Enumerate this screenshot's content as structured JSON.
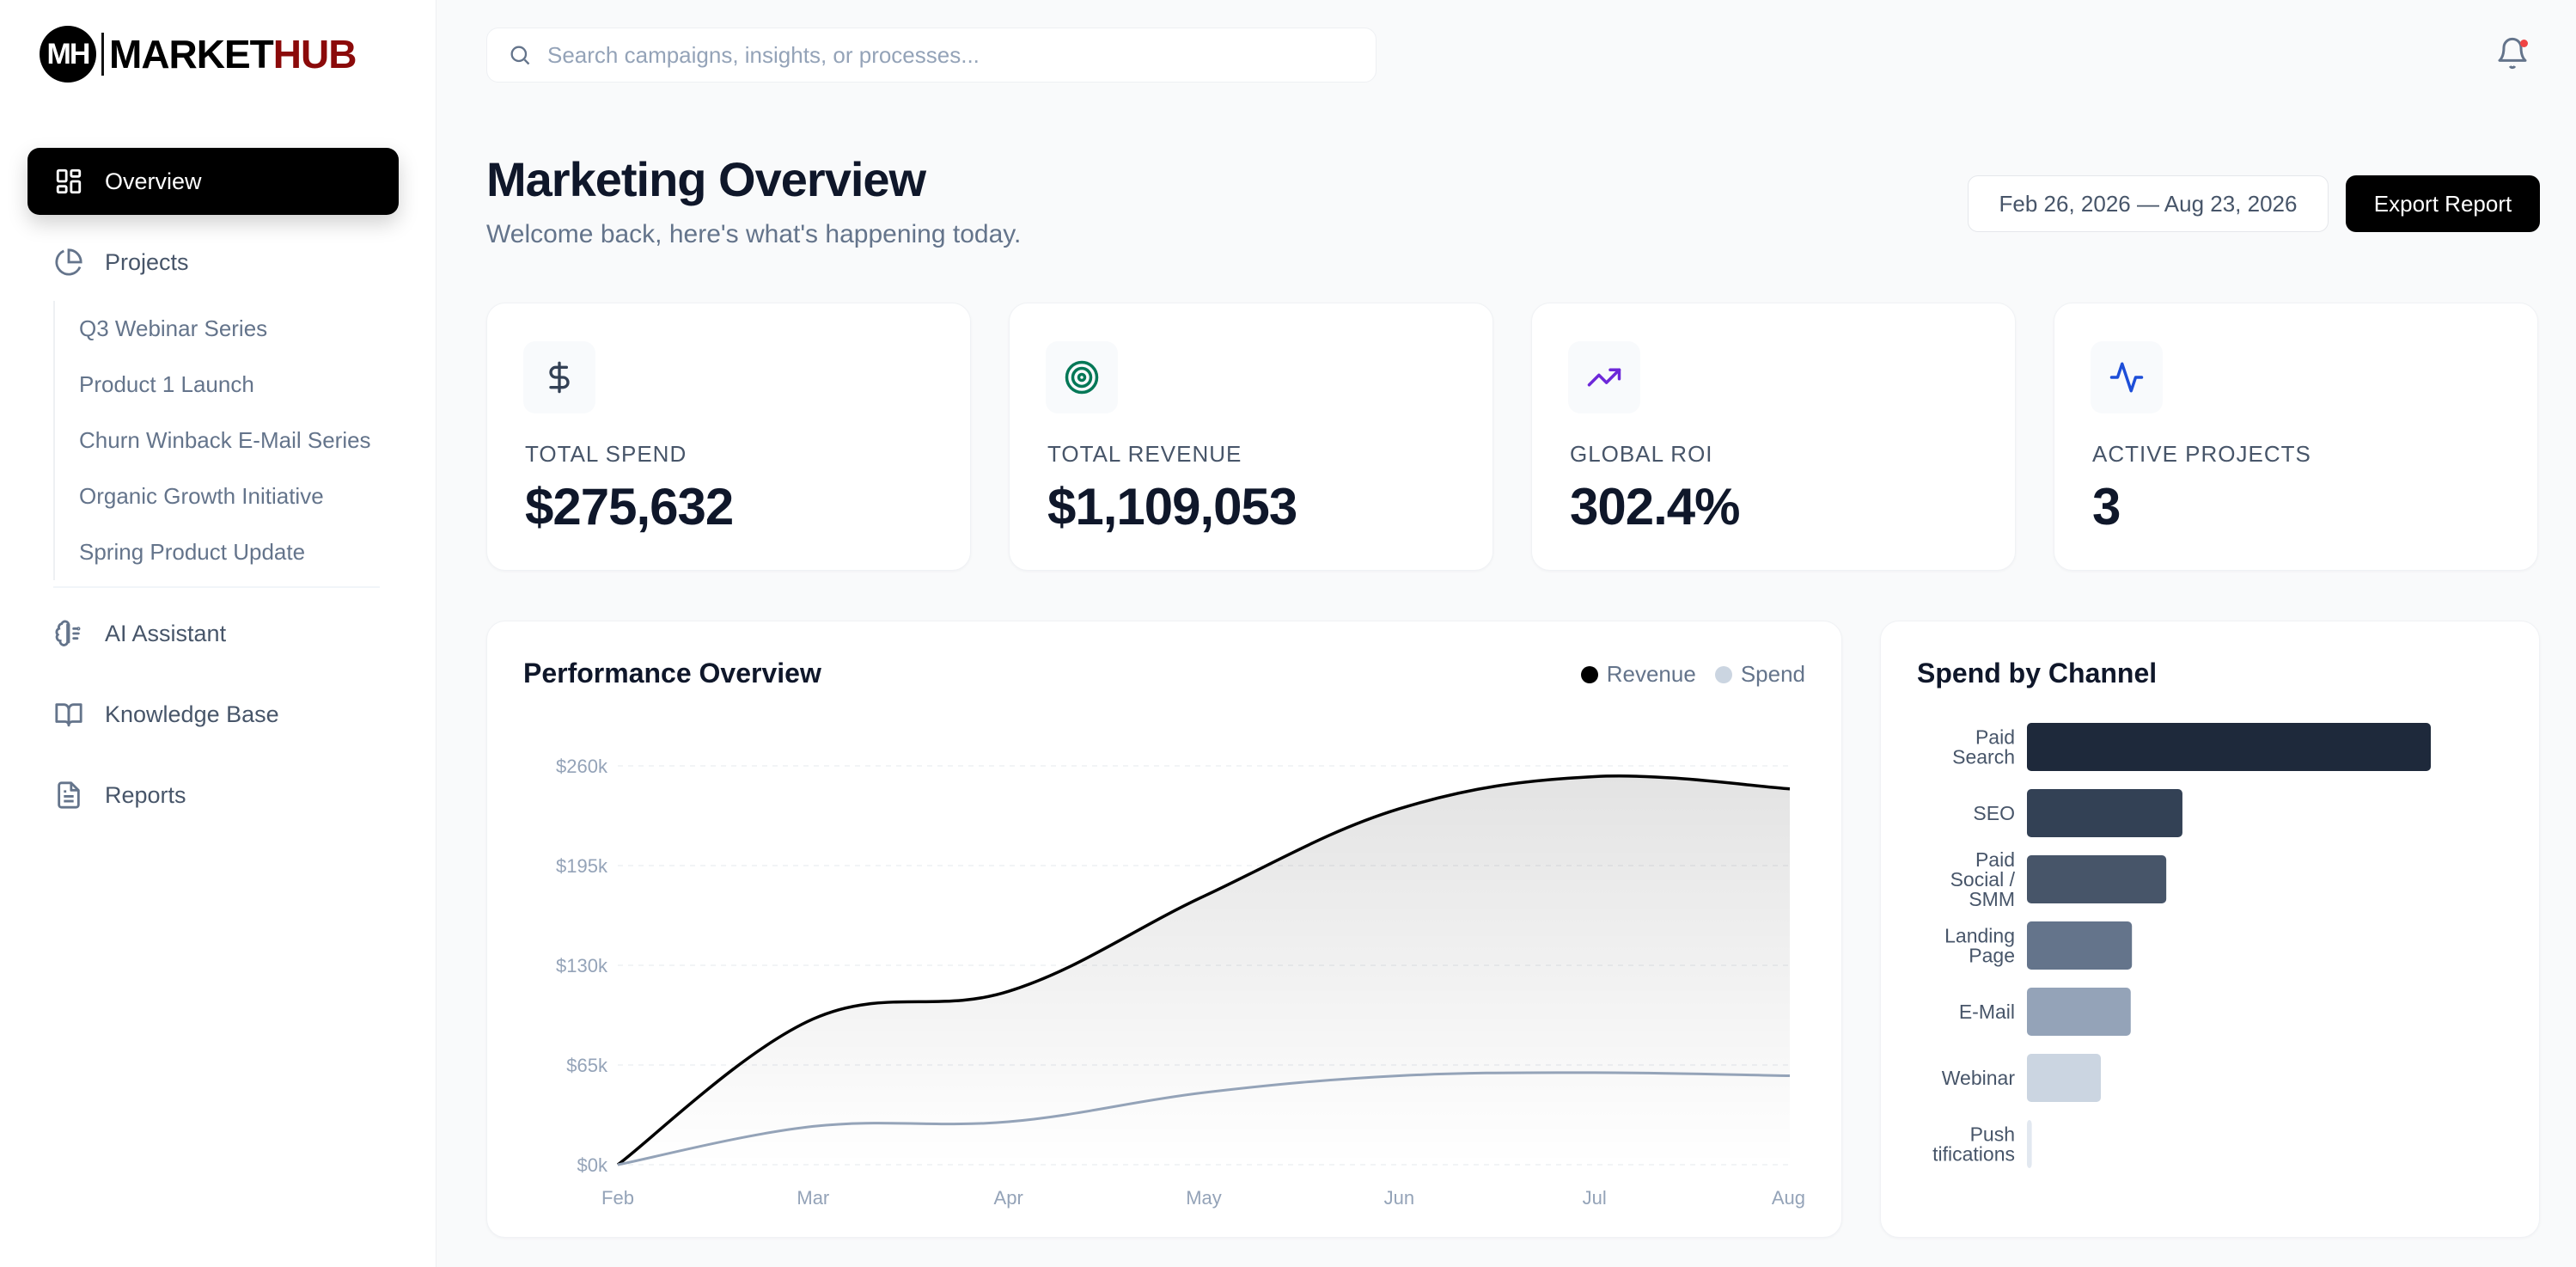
{
  "brand": {
    "initials": "MH",
    "name_part1": "MARKET",
    "name_part2": "HUB"
  },
  "sidebar": {
    "overview": "Overview",
    "projects": "Projects",
    "project_items": [
      "Q3 Webinar Series",
      "Product 1 Launch",
      "Churn Winback E-Mail Series",
      "Organic Growth Initiative",
      "Spring Product Update"
    ],
    "ai_assistant": "AI Assistant",
    "knowledge_base": "Knowledge Base",
    "reports": "Reports"
  },
  "search": {
    "placeholder": "Search campaigns, insights, or processes..."
  },
  "header": {
    "title": "Marketing Overview",
    "subtitle": "Welcome back, here's what's happening today.",
    "date_range": "Feb 26, 2026 — Aug 23, 2026",
    "export_label": "Export Report"
  },
  "kpis": [
    {
      "label": "TOTAL SPEND",
      "value": "$275,632",
      "icon": "dollar-icon",
      "color": "#334155"
    },
    {
      "label": "TOTAL REVENUE",
      "value": "$1,109,053",
      "icon": "target-icon",
      "color": "#047857"
    },
    {
      "label": "GLOBAL ROI",
      "value": "302.4%",
      "icon": "trending-up-icon",
      "color": "#6d28d9"
    },
    {
      "label": "ACTIVE PROJECTS",
      "value": "3",
      "icon": "activity-icon",
      "color": "#1d4ed8"
    }
  ],
  "chart_data": [
    {
      "type": "area",
      "title": "Performance Overview",
      "categories": [
        "Feb",
        "Mar",
        "Apr",
        "May",
        "Jun",
        "Jul",
        "Aug"
      ],
      "y_ticks": [
        "$0k",
        "$65k",
        "$130k",
        "$195k",
        "$260k"
      ],
      "ylim": [
        0,
        260000
      ],
      "grid": true,
      "legend_position": "top-right",
      "series": [
        {
          "name": "Revenue",
          "color": "#000000",
          "values": [
            0,
            95000,
            113000,
            175000,
            232000,
            253000,
            245000
          ]
        },
        {
          "name": "Spend",
          "color": "#94a3b8",
          "values": [
            0,
            25000,
            28000,
            47000,
            58000,
            60000,
            58000
          ]
        }
      ]
    },
    {
      "type": "bar",
      "orientation": "horizontal",
      "title": "Spend by Channel",
      "categories": [
        "Paid Search",
        "SEO",
        "Paid Social / SMM",
        "Landing Page",
        "E-Mail",
        "Webinar",
        "Push tifications"
      ],
      "category_lines": [
        [
          "Paid",
          "Search"
        ],
        [
          "SEO"
        ],
        [
          "Paid",
          "Social /",
          "SMM"
        ],
        [
          "Landing",
          "Page"
        ],
        [
          "E-Mail"
        ],
        [
          "Webinar"
        ],
        [
          "Push",
          "tifications"
        ]
      ],
      "values": [
        100,
        38.5,
        34.5,
        26,
        25.7,
        18.3,
        1.2
      ],
      "colors": [
        "#1e293b",
        "#334155",
        "#475569",
        "#64748b",
        "#94a3b8",
        "#cbd5e1",
        "#e2e8f0"
      ]
    }
  ]
}
